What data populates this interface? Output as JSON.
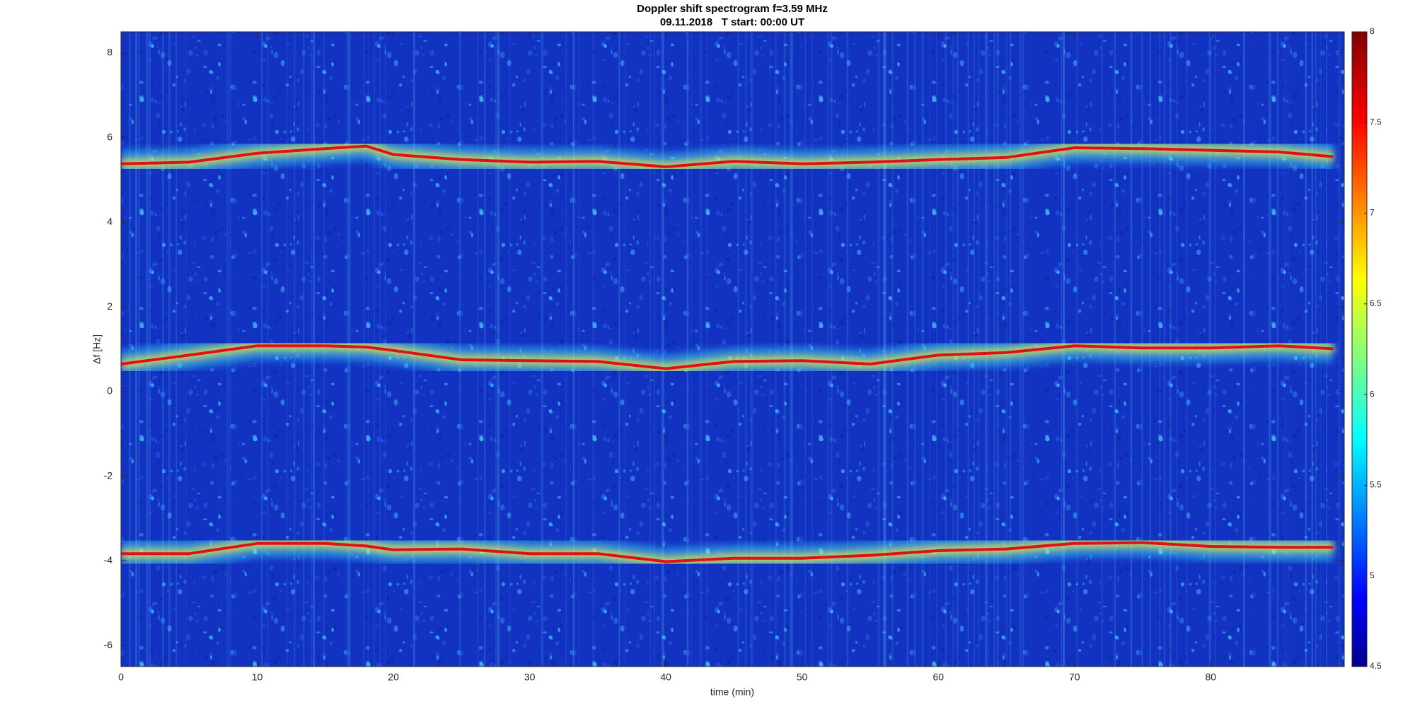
{
  "chart_data": {
    "type": "spectrogram",
    "title": "Doppler shift spectrogram f=3.59 MHz",
    "subtitle": "09.11.2018   T start: 00:00 UT",
    "xlabel": "time (min)",
    "ylabel": "Δf [Hz]",
    "xlim": [
      0,
      89.8
    ],
    "ylim": [
      -6.5,
      8.5
    ],
    "xticks": [
      0,
      10,
      20,
      30,
      40,
      50,
      60,
      70,
      80
    ],
    "yticks": [
      -6,
      -4,
      -2,
      0,
      2,
      4,
      6,
      8
    ],
    "colormap": "jet",
    "background_color": "#1233c2",
    "clim": [
      4.5,
      8
    ],
    "cticks": [
      4.5,
      5,
      5.5,
      6,
      6.5,
      7,
      7.5,
      8
    ],
    "x": [
      0,
      5,
      10,
      15,
      18,
      20,
      25,
      30,
      35,
      40,
      45,
      50,
      55,
      60,
      65,
      70,
      75,
      80,
      85,
      89
    ],
    "series": [
      {
        "color": "#e0101a",
        "values": [
          5.38,
          5.42,
          5.63,
          5.74,
          5.8,
          5.6,
          5.48,
          5.42,
          5.44,
          5.31,
          5.44,
          5.38,
          5.42,
          5.48,
          5.53,
          5.76,
          5.74,
          5.7,
          5.66,
          5.55
        ]
      },
      {
        "color": "#e0101a",
        "values": [
          0.65,
          0.86,
          1.08,
          1.08,
          1.05,
          0.97,
          0.75,
          0.73,
          0.71,
          0.54,
          0.71,
          0.73,
          0.65,
          0.86,
          0.92,
          1.08,
          1.03,
          1.03,
          1.08,
          1.01
        ]
      },
      {
        "color": "#e0101a",
        "values": [
          -3.83,
          -3.83,
          -3.59,
          -3.59,
          -3.65,
          -3.74,
          -3.72,
          -3.83,
          -3.83,
          -4.02,
          -3.94,
          -3.94,
          -3.87,
          -3.76,
          -3.72,
          -3.59,
          -3.57,
          -3.66,
          -3.68,
          -3.68
        ]
      }
    ]
  }
}
